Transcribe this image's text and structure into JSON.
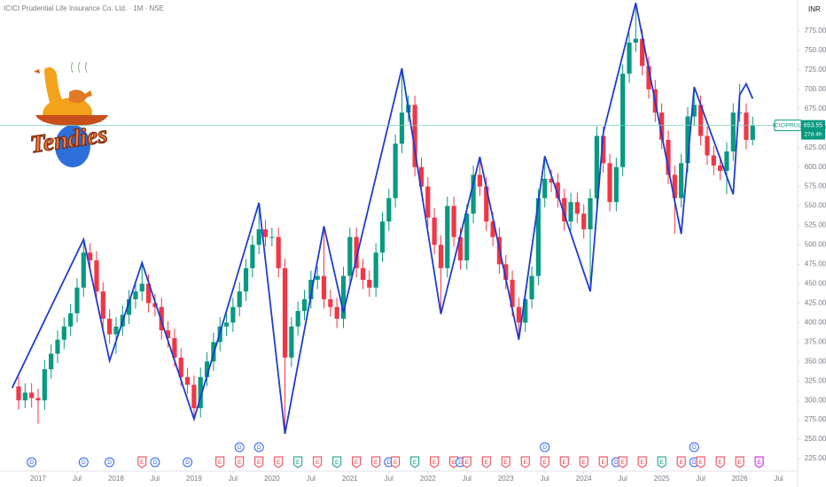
{
  "chart_data": {
    "type": "candlestick",
    "title": "ICICI Prudential Life Insurance Co. Ltd. · 1M · NSE",
    "currency": "INR",
    "logo_text": "Tendies",
    "symbol": "ICICIPRULI",
    "countdown": "27d 4h",
    "up_color": "#089981",
    "down_color": "#f23645",
    "zigzag_color": "#1f3ccf",
    "grid": false,
    "xlim": [
      -2.865,
      119.92
    ],
    "ylim": [
      209.1,
      814.8
    ],
    "yticks": [
      {
        "value": 225,
        "label": "225.00"
      },
      {
        "value": 250,
        "label": "250.00"
      },
      {
        "value": 275,
        "label": "275.00"
      },
      {
        "value": 300,
        "label": "300.00"
      },
      {
        "value": 325,
        "label": "325.00"
      },
      {
        "value": 350,
        "label": "350.00"
      },
      {
        "value": 375,
        "label": "375.00"
      },
      {
        "value": 400,
        "label": "400.00"
      },
      {
        "value": 425,
        "label": "425.00"
      },
      {
        "value": 450,
        "label": "450.00"
      },
      {
        "value": 475,
        "label": "475.00"
      },
      {
        "value": 500,
        "label": "500.00"
      },
      {
        "value": 525,
        "label": "525.00"
      },
      {
        "value": 550,
        "label": "550.00"
      },
      {
        "value": 575,
        "label": "575.00"
      },
      {
        "value": 600,
        "label": "600.00"
      },
      {
        "value": 625,
        "label": "625.00"
      },
      {
        "value": 650,
        "label": "650.00"
      },
      {
        "value": 675,
        "label": "675.00"
      },
      {
        "value": 700,
        "label": "700.00"
      },
      {
        "value": 725,
        "label": "725.00"
      },
      {
        "value": 750,
        "label": "750.00"
      },
      {
        "value": 775,
        "label": "775.00"
      }
    ],
    "xticks": [
      {
        "value": 3,
        "label": "2017"
      },
      {
        "value": 9,
        "label": "Jul"
      },
      {
        "value": 15,
        "label": "2018"
      },
      {
        "value": 21,
        "label": "Jul"
      },
      {
        "value": 27,
        "label": "2019"
      },
      {
        "value": 33,
        "label": "Jul"
      },
      {
        "value": 39,
        "label": "2020"
      },
      {
        "value": 45,
        "label": "Jul"
      },
      {
        "value": 51,
        "label": "2021"
      },
      {
        "value": 57,
        "label": "Jul"
      },
      {
        "value": 63,
        "label": "2022"
      },
      {
        "value": 69,
        "label": "Jul"
      },
      {
        "value": 75,
        "label": "2023"
      },
      {
        "value": 81,
        "label": "Jul"
      },
      {
        "value": 87,
        "label": "2024"
      },
      {
        "value": 93,
        "label": "Jul"
      },
      {
        "value": 99,
        "label": "2025"
      },
      {
        "value": 105,
        "label": "Jul"
      },
      {
        "value": 111,
        "label": "2026"
      },
      {
        "value": 117,
        "label": "Jul"
      }
    ],
    "open": [
      318,
      300,
      310,
      303,
      300,
      340,
      360,
      378,
      395,
      412,
      445,
      490,
      480,
      440,
      405,
      385,
      395,
      410,
      430,
      440,
      450,
      425,
      420,
      390,
      380,
      355,
      330,
      320,
      290,
      330,
      350,
      375,
      395,
      400,
      420,
      440,
      470,
      500,
      520,
      510,
      510,
      470,
      355,
      395,
      415,
      430,
      455,
      460,
      430,
      420,
      405,
      460,
      510,
      470,
      455,
      445,
      490,
      530,
      560,
      630,
      670,
      680,
      600,
      575,
      535,
      500,
      470,
      550,
      510,
      480,
      540,
      590,
      575,
      530,
      510,
      475,
      455,
      420,
      400,
      430,
      460,
      560,
      585,
      580,
      560,
      530,
      555,
      540,
      520,
      560,
      640,
      605,
      555,
      600,
      720,
      760,
      765,
      730,
      700,
      670,
      635,
      590,
      560,
      605,
      665,
      680,
      640,
      615,
      602,
      595,
      620,
      670,
      670,
      635
    ],
    "high": [
      330,
      322,
      322,
      315,
      352,
      372,
      390,
      407,
      424,
      457,
      507,
      502,
      492,
      452,
      417,
      407,
      422,
      442,
      452,
      477,
      462,
      437,
      432,
      402,
      392,
      367,
      342,
      332,
      342,
      362,
      387,
      407,
      412,
      432,
      452,
      482,
      512,
      554,
      532,
      522,
      522,
      482,
      407,
      427,
      442,
      467,
      472,
      524,
      442,
      432,
      472,
      522,
      522,
      482,
      467,
      502,
      542,
      572,
      642,
      727,
      692,
      692,
      612,
      587,
      547,
      512,
      562,
      562,
      522,
      552,
      602,
      613,
      587,
      542,
      522,
      487,
      467,
      432,
      442,
      472,
      572,
      614,
      597,
      592,
      572,
      567,
      567,
      552,
      572,
      652,
      652,
      617,
      612,
      732,
      772,
      811,
      777,
      742,
      712,
      682,
      647,
      602,
      617,
      677,
      703,
      692,
      652,
      627,
      614,
      632,
      682,
      707,
      682,
      665
    ],
    "low": [
      288,
      290,
      291,
      270,
      288,
      328,
      348,
      366,
      383,
      400,
      433,
      468,
      428,
      393,
      373,
      360,
      383,
      398,
      418,
      428,
      413,
      408,
      378,
      368,
      343,
      318,
      308,
      276,
      278,
      318,
      338,
      363,
      383,
      388,
      408,
      428,
      458,
      488,
      498,
      498,
      458,
      257,
      343,
      383,
      403,
      418,
      443,
      418,
      408,
      393,
      393,
      448,
      458,
      443,
      433,
      433,
      478,
      518,
      548,
      618,
      658,
      588,
      563,
      523,
      488,
      411,
      458,
      498,
      468,
      468,
      528,
      563,
      518,
      498,
      463,
      443,
      408,
      378,
      388,
      418,
      448,
      548,
      568,
      548,
      518,
      518,
      528,
      508,
      440,
      548,
      593,
      543,
      543,
      588,
      708,
      748,
      718,
      688,
      658,
      623,
      578,
      514,
      548,
      593,
      653,
      628,
      603,
      590,
      583,
      565,
      608,
      658,
      623,
      628
    ],
    "close": [
      300,
      310,
      303,
      300,
      340,
      360,
      378,
      395,
      412,
      445,
      490,
      480,
      440,
      405,
      385,
      395,
      410,
      430,
      440,
      450,
      425,
      420,
      390,
      380,
      355,
      330,
      320,
      290,
      330,
      350,
      375,
      395,
      400,
      420,
      440,
      470,
      500,
      520,
      510,
      510,
      470,
      355,
      395,
      415,
      430,
      455,
      460,
      430,
      420,
      405,
      460,
      510,
      470,
      455,
      445,
      490,
      530,
      560,
      630,
      670,
      680,
      600,
      575,
      535,
      500,
      470,
      550,
      510,
      480,
      540,
      590,
      575,
      530,
      510,
      475,
      455,
      420,
      400,
      430,
      460,
      560,
      585,
      580,
      560,
      530,
      555,
      540,
      520,
      560,
      640,
      605,
      555,
      600,
      720,
      760,
      765,
      730,
      700,
      670,
      635,
      590,
      560,
      605,
      665,
      680,
      640,
      615,
      602,
      595,
      620,
      670,
      670,
      635,
      653.55
    ],
    "zigzag": {
      "x": [
        -1,
        10,
        14,
        19,
        27,
        37,
        41,
        47,
        50,
        59,
        65,
        71,
        77,
        81,
        88,
        90,
        95,
        102,
        104,
        110,
        111,
        112,
        113
      ],
      "values": [
        316,
        507,
        351,
        477,
        276,
        554,
        257,
        524,
        413,
        727,
        411,
        613,
        378,
        614,
        440,
        644,
        811,
        514,
        703,
        565,
        693,
        707,
        688
      ]
    },
    "events": [
      {
        "label": "D",
        "index": 2,
        "color": "#2962ff"
      },
      {
        "label": "D",
        "index": 10,
        "color": "#2962ff"
      },
      {
        "label": "D",
        "index": 14,
        "color": "#2962ff"
      },
      {
        "label": "E",
        "index": 19,
        "color": "#f23645"
      },
      {
        "label": "D",
        "index": 21,
        "color": "#2962ff"
      },
      {
        "label": "D",
        "index": 26,
        "color": "#2962ff"
      },
      {
        "label": "E",
        "index": 31,
        "color": "#f23645"
      },
      {
        "label": "E",
        "index": 34,
        "color": "#f23645"
      },
      {
        "label": "E",
        "index": 37,
        "color": "#f23645"
      },
      {
        "label": "E",
        "index": 40,
        "color": "#f23645"
      },
      {
        "label": "E",
        "index": 43,
        "color": "#089981"
      },
      {
        "label": "E",
        "index": 46,
        "color": "#f23645"
      },
      {
        "label": "E",
        "index": 49,
        "color": "#089981"
      },
      {
        "label": "E",
        "index": 52,
        "color": "#f23645"
      },
      {
        "label": "E",
        "index": 55,
        "color": "#f23645"
      },
      {
        "label": "D",
        "index": 57,
        "color": "#2962ff"
      },
      {
        "label": "E",
        "index": 58,
        "color": "#f23645"
      },
      {
        "label": "E",
        "index": 61,
        "color": "#089981"
      },
      {
        "label": "E",
        "index": 64,
        "color": "#f23645"
      },
      {
        "label": "E",
        "index": 67,
        "color": "#f23645"
      },
      {
        "label": "D",
        "index": 68,
        "color": "#2962ff"
      },
      {
        "label": "E",
        "index": 69,
        "color": "#f23645"
      },
      {
        "label": "E",
        "index": 72,
        "color": "#f23645"
      },
      {
        "label": "E",
        "index": 75,
        "color": "#f23645"
      },
      {
        "label": "E",
        "index": 78,
        "color": "#f23645"
      },
      {
        "label": "E",
        "index": 81,
        "color": "#f23645"
      },
      {
        "label": "E",
        "index": 84,
        "color": "#f23645"
      },
      {
        "label": "E",
        "index": 87,
        "color": "#f23645"
      },
      {
        "label": "E",
        "index": 90,
        "color": "#f23645"
      },
      {
        "label": "D",
        "index": 92,
        "color": "#2962ff"
      },
      {
        "label": "E",
        "index": 93,
        "color": "#f23645"
      },
      {
        "label": "E",
        "index": 96,
        "color": "#f23645"
      },
      {
        "label": "E",
        "index": 99,
        "color": "#089981"
      },
      {
        "label": "E",
        "index": 102,
        "color": "#f23645"
      },
      {
        "label": "D",
        "index": 104,
        "color": "#2962ff"
      },
      {
        "label": "E",
        "index": 105,
        "color": "#f23645"
      },
      {
        "label": "E",
        "index": 108,
        "color": "#f23645"
      },
      {
        "label": "E",
        "index": 111,
        "color": "#f23645"
      },
      {
        "label": "E",
        "index": 114,
        "color": "#d500f9"
      }
    ],
    "events_upper": [
      {
        "label": "D",
        "index": 34,
        "color": "#2962ff"
      },
      {
        "label": "D",
        "index": 37,
        "color": "#2962ff"
      },
      {
        "label": "D",
        "index": 81,
        "color": "#2962ff"
      },
      {
        "label": "D",
        "index": 104,
        "color": "#2962ff"
      }
    ]
  }
}
